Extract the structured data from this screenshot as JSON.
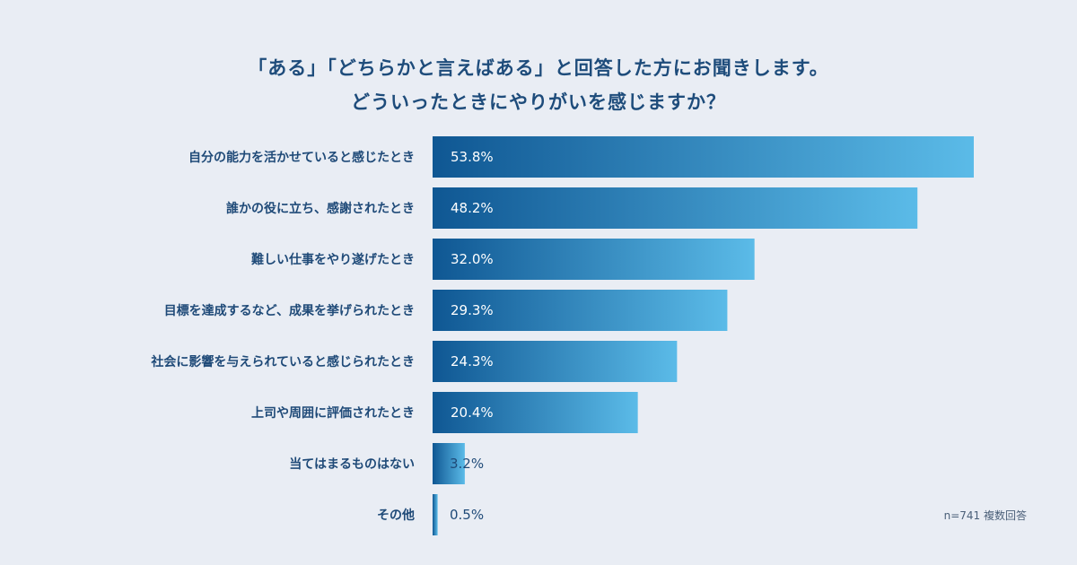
{
  "chart_data": {
    "type": "bar",
    "orientation": "horizontal",
    "title_line1": "「ある」「どちらかと言えばある」と回答した方にお聞きします。",
    "title_line2": "どういったときにやりがいを感じますか？",
    "categories": [
      "自分の能力を活かせていると感じたとき",
      "誰かの役に立ち、感謝されたとき",
      "難しい仕事をやり遂げたとき",
      "目標を達成するなど、成果を挙げられたとき",
      "社会に影響を与えられていると感じられたとき",
      "上司や周囲に評価されたとき",
      "当てはまるものはない",
      "その他"
    ],
    "values": [
      53.8,
      48.2,
      32.0,
      29.3,
      24.3,
      20.4,
      3.2,
      0.5
    ],
    "value_labels": [
      "53.8%",
      "48.2%",
      "32.0%",
      "29.3%",
      "24.3%",
      "20.4%",
      "3.2%",
      "0.5%"
    ],
    "xlim": [
      0,
      53.8
    ],
    "unit": "%",
    "note": "n=741 複数回答",
    "colors": {
      "bar_start": "#0f5793",
      "bar_end": "#5bbbe8",
      "label_inside": "#ffffff",
      "label_outside": "#1f4a78"
    }
  }
}
